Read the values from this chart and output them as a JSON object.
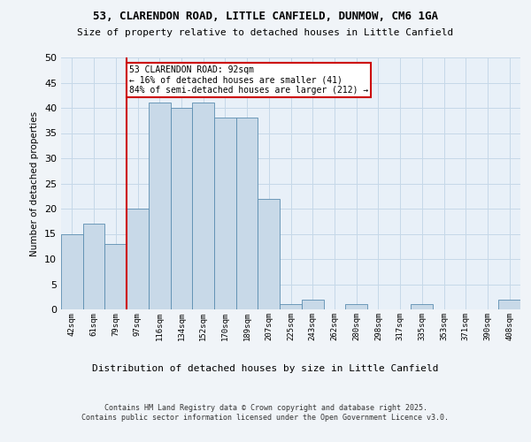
{
  "title1": "53, CLARENDON ROAD, LITTLE CANFIELD, DUNMOW, CM6 1GA",
  "title2": "Size of property relative to detached houses in Little Canfield",
  "xlabel": "Distribution of detached houses by size in Little Canfield",
  "ylabel": "Number of detached properties",
  "categories": [
    "42sqm",
    "61sqm",
    "79sqm",
    "97sqm",
    "116sqm",
    "134sqm",
    "152sqm",
    "170sqm",
    "189sqm",
    "207sqm",
    "225sqm",
    "243sqm",
    "262sqm",
    "280sqm",
    "298sqm",
    "317sqm",
    "335sqm",
    "353sqm",
    "371sqm",
    "390sqm",
    "408sqm"
  ],
  "values": [
    15,
    17,
    13,
    20,
    41,
    40,
    41,
    38,
    38,
    22,
    1,
    2,
    0,
    1,
    0,
    0,
    1,
    0,
    0,
    0,
    2
  ],
  "bar_color": "#c8d9e8",
  "bar_edge_color": "#5b8db0",
  "grid_color": "#c5d8e8",
  "bg_color": "#e8f0f8",
  "vline_x": 2.5,
  "vline_color": "#cc0000",
  "annotation_text": "53 CLARENDON ROAD: 92sqm\n← 16% of detached houses are smaller (41)\n84% of semi-detached houses are larger (212) →",
  "annotation_box_color": "#ffffff",
  "annotation_box_edge": "#cc0000",
  "footer": "Contains HM Land Registry data © Crown copyright and database right 2025.\nContains public sector information licensed under the Open Government Licence v3.0.",
  "ylim": [
    0,
    50
  ],
  "yticks": [
    0,
    5,
    10,
    15,
    20,
    25,
    30,
    35,
    40,
    45,
    50
  ],
  "fig_bg": "#f0f4f8"
}
